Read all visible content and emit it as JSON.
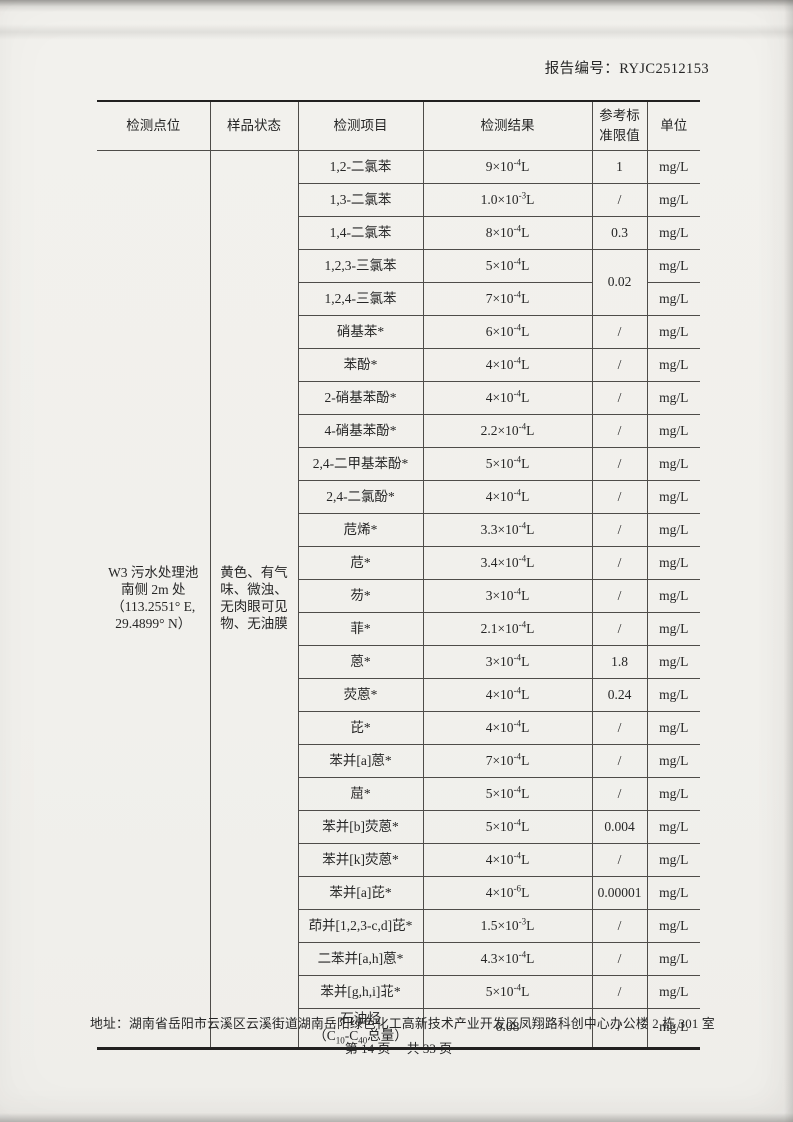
{
  "page": {
    "report_no_label": "报告编号：",
    "report_no": "RYJC2512153",
    "footer_address": "地址：湖南省岳阳市云溪区云溪街道湖南岳阳绿色化工高新技术产业开发区凤翔路科创中心办公楼 2 栋 301 室",
    "footer_page": "第 14 页　 共 33 页"
  },
  "table": {
    "headers": [
      "检测点位",
      "样品状态",
      "检测项目",
      "检测结果",
      "参考标\n准限值",
      "单位"
    ],
    "location": "W3 污水处理池\n南侧 2m 处\n（113.2551° E,\n29.4899° N）",
    "sample_status": "黄色、有气\n味、微浊、\n无肉眼可见\n物、无油膜",
    "rows": [
      {
        "item": "1,2-二氯苯",
        "result": "9×10^{-4}L",
        "limit": "1",
        "unit": "mg/L"
      },
      {
        "item": "1,3-二氯苯",
        "result": "1.0×10^{-3}L",
        "limit": "/",
        "unit": "mg/L"
      },
      {
        "item": "1,4-二氯苯",
        "result": "8×10^{-4}L",
        "limit": "0.3",
        "unit": "mg/L"
      },
      {
        "item": "1,2,3-三氯苯",
        "result": "5×10^{-4}L",
        "limit": "0.02",
        "limit_rowspan": 2,
        "unit": "mg/L"
      },
      {
        "item": "1,2,4-三氯苯",
        "result": "7×10^{-4}L",
        "limit": null,
        "unit": "mg/L"
      },
      {
        "item": "硝基苯*",
        "result": "6×10^{-4}L",
        "limit": "/",
        "unit": "mg/L"
      },
      {
        "item": "苯酚*",
        "result": "4×10^{-4}L",
        "limit": "/",
        "unit": "mg/L"
      },
      {
        "item": "2-硝基苯酚*",
        "result": "4×10^{-4}L",
        "limit": "/",
        "unit": "mg/L"
      },
      {
        "item": "4-硝基苯酚*",
        "result": "2.2×10^{-4}L",
        "limit": "/",
        "unit": "mg/L"
      },
      {
        "item": "2,4-二甲基苯酚*",
        "result": "5×10^{-4}L",
        "limit": "/",
        "unit": "mg/L"
      },
      {
        "item": "2,4-二氯酚*",
        "result": "4×10^{-4}L",
        "limit": "/",
        "unit": "mg/L"
      },
      {
        "item": "苊烯*",
        "result": "3.3×10^{-4}L",
        "limit": "/",
        "unit": "mg/L"
      },
      {
        "item": "苊*",
        "result": "3.4×10^{-4}L",
        "limit": "/",
        "unit": "mg/L"
      },
      {
        "item": "芴*",
        "result": "3×10^{-4}L",
        "limit": "/",
        "unit": "mg/L"
      },
      {
        "item": "菲*",
        "result": "2.1×10^{-4}L",
        "limit": "/",
        "unit": "mg/L"
      },
      {
        "item": "蒽*",
        "result": "3×10^{-4}L",
        "limit": "1.8",
        "unit": "mg/L"
      },
      {
        "item": "荧蒽*",
        "result": "4×10^{-4}L",
        "limit": "0.24",
        "unit": "mg/L"
      },
      {
        "item": "芘*",
        "result": "4×10^{-4}L",
        "limit": "/",
        "unit": "mg/L"
      },
      {
        "item": "苯并[a]蒽*",
        "result": "7×10^{-4}L",
        "limit": "/",
        "unit": "mg/L"
      },
      {
        "item": "䓛*",
        "result": "5×10^{-4}L",
        "limit": "/",
        "unit": "mg/L"
      },
      {
        "item": "苯并[b]荧蒽*",
        "result": "5×10^{-4}L",
        "limit": "0.004",
        "unit": "mg/L"
      },
      {
        "item": "苯并[k]荧蒽*",
        "result": "4×10^{-4}L",
        "limit": "/",
        "unit": "mg/L"
      },
      {
        "item": "苯并[a]芘*",
        "result": "4×10^{-6}L",
        "limit": "0.00001",
        "unit": "mg/L"
      },
      {
        "item": "茚并[1,2,3-c,d]芘*",
        "result": "1.5×10^{-3}L",
        "limit": "/",
        "unit": "mg/L"
      },
      {
        "item": "二苯并[a,h]蒽*",
        "result": "4.3×10^{-4}L",
        "limit": "/",
        "unit": "mg/L"
      },
      {
        "item": "苯并[g,h,i]苝*",
        "result": "5×10^{-4}L",
        "limit": "/",
        "unit": "mg/L"
      },
      {
        "item": "石油烃\n（C_{10}-C_{40}总量）",
        "result": "0.08",
        "limit": "/",
        "unit": "mg/L"
      }
    ]
  }
}
